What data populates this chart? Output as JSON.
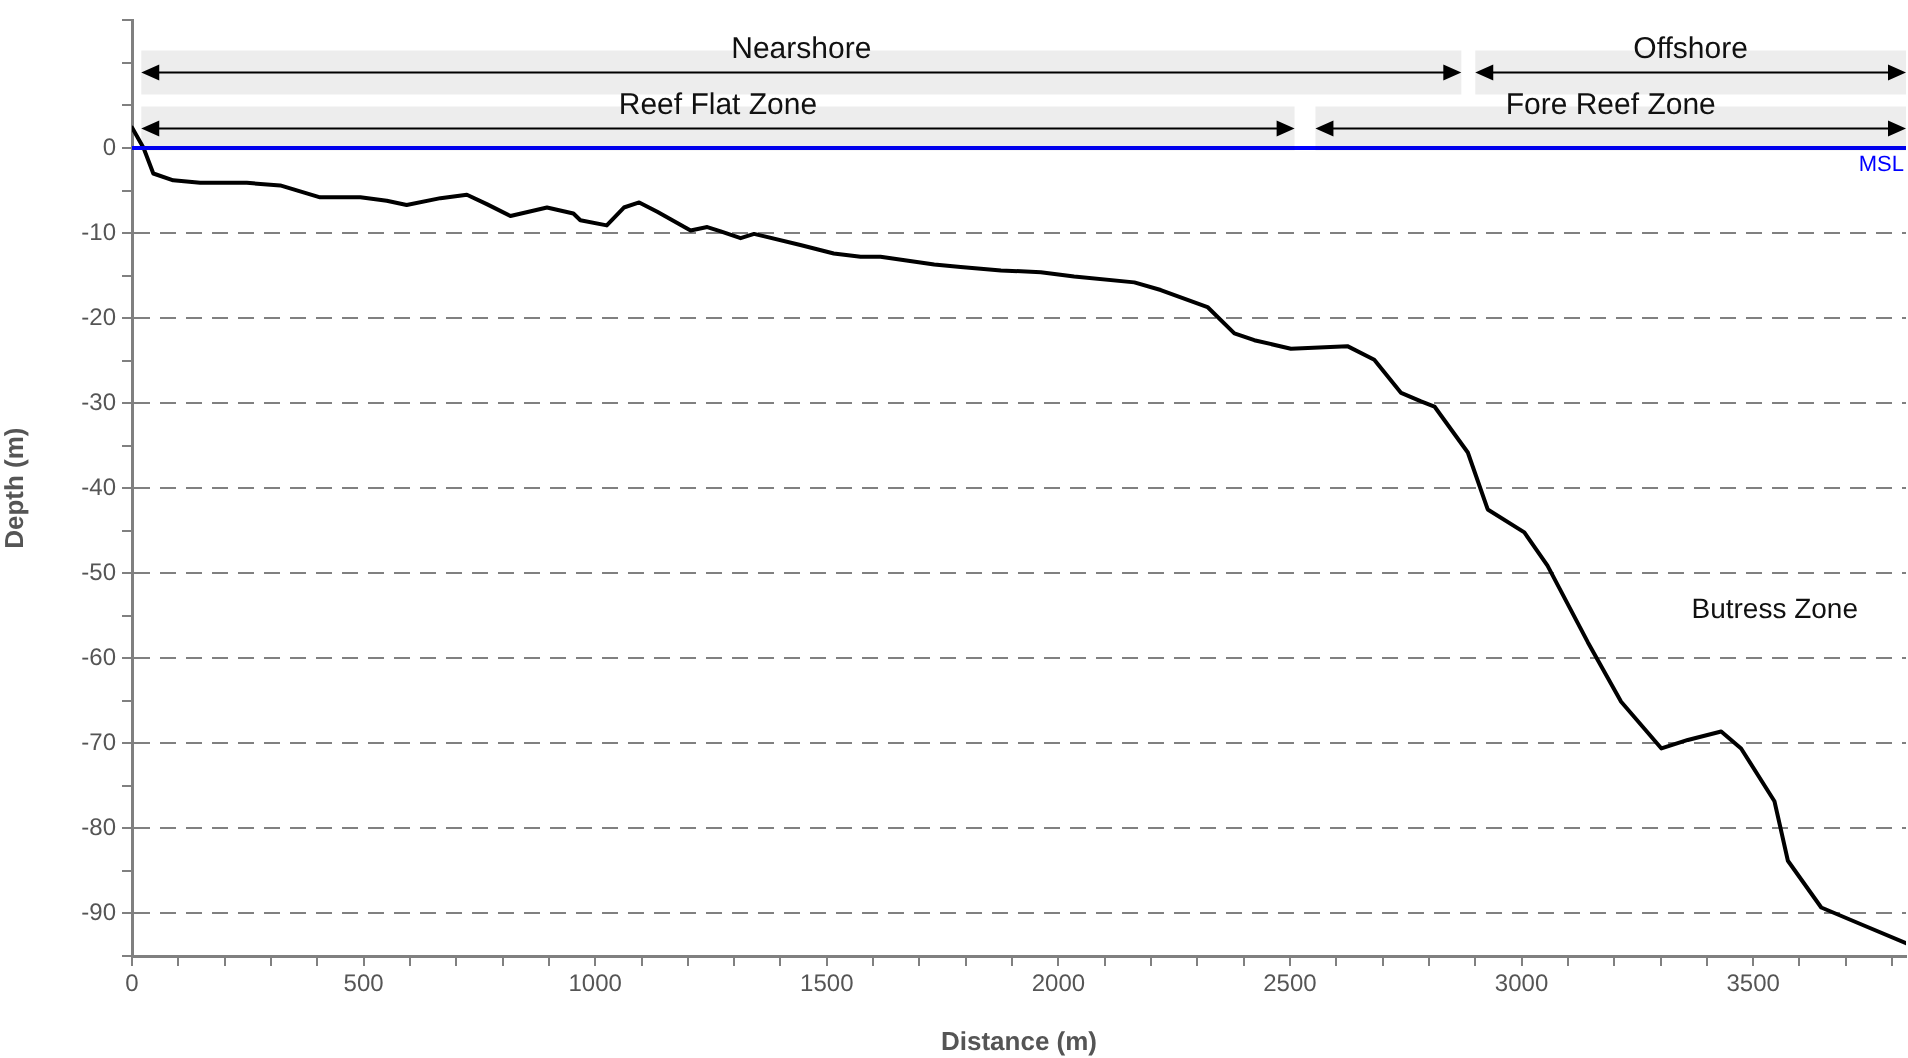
{
  "chart_data": {
    "type": "line",
    "xlabel": "Distance (m)",
    "ylabel": "Depth (m)",
    "xlim": [
      0,
      3830
    ],
    "ylim": [
      -95,
      15
    ],
    "xticks": [
      0,
      {
        "value": 100,
        "label": null
      },
      {
        "value": 200,
        "label": null
      },
      {
        "value": 300,
        "label": null
      },
      {
        "value": 400,
        "label": null
      },
      500,
      {
        "value": 600,
        "label": null
      },
      {
        "value": 700,
        "label": null
      },
      {
        "value": 800,
        "label": null
      },
      {
        "value": 900,
        "label": null
      },
      1000,
      {
        "value": 1100,
        "label": null
      },
      {
        "value": 1200,
        "label": null
      },
      {
        "value": 1300,
        "label": null
      },
      {
        "value": 1400,
        "label": null
      },
      1500,
      {
        "value": 1600,
        "label": null
      },
      {
        "value": 1700,
        "label": null
      },
      {
        "value": 1800,
        "label": null
      },
      {
        "value": 1900,
        "label": null
      },
      2000,
      {
        "value": 2100,
        "label": null
      },
      {
        "value": 2200,
        "label": null
      },
      {
        "value": 2300,
        "label": null
      },
      {
        "value": 2400,
        "label": null
      },
      2500,
      {
        "value": 2600,
        "label": null
      },
      {
        "value": 2700,
        "label": null
      },
      {
        "value": 2800,
        "label": null
      },
      {
        "value": 2900,
        "label": null
      },
      3000,
      {
        "value": 3100,
        "label": null
      },
      {
        "value": 3200,
        "label": null
      },
      {
        "value": 3300,
        "label": null
      },
      {
        "value": 3400,
        "label": null
      },
      3500,
      {
        "value": 3600,
        "label": null
      },
      {
        "value": 3700,
        "label": null
      },
      {
        "value": 3800,
        "label": null
      }
    ],
    "yticks": [
      {
        "value": -95,
        "label": null
      },
      -90,
      {
        "value": -85,
        "label": null
      },
      -80,
      {
        "value": -75,
        "label": null
      },
      -70,
      {
        "value": -65,
        "label": null
      },
      -60,
      {
        "value": -55,
        "label": null
      },
      -50,
      {
        "value": -45,
        "label": null
      },
      -40,
      {
        "value": -35,
        "label": null
      },
      -30,
      {
        "value": -25,
        "label": null
      },
      -20,
      {
        "value": -15,
        "label": null
      },
      -10,
      {
        "value": -5,
        "label": null
      },
      0,
      {
        "value": 5,
        "label": null
      },
      {
        "value": 10,
        "label": null
      },
      {
        "value": 15,
        "label": null
      }
    ],
    "grid": "y",
    "marker": "none",
    "line_style": "solid",
    "series": [
      {
        "color": "#000000",
        "x": [
          0,
          25,
          46,
          89,
          147,
          248,
          320,
          406,
          493,
          550,
          593,
          666,
          723,
          766,
          817,
          896,
          953,
          968,
          1025,
          1062,
          1095,
          1134,
          1206,
          1242,
          1271,
          1314,
          1343,
          1443,
          1515,
          1573,
          1616,
          1732,
          1789,
          1876,
          1962,
          2034,
          2164,
          2221,
          2322,
          2380,
          2423,
          2502,
          2624,
          2682,
          2740,
          2783,
          2812,
          2884,
          2927,
          3006,
          3056,
          3143,
          3215,
          3302,
          3359,
          3431,
          3474,
          3546,
          3575,
          3647,
          3734,
          3830
        ],
        "values": [
          2.4,
          0,
          -3.0,
          -3.8,
          -4.1,
          -4.1,
          -4.4,
          -5.8,
          -5.8,
          -6.2,
          -6.7,
          -5.9,
          -5.5,
          -6.6,
          -8.0,
          -7.0,
          -7.7,
          -8.5,
          -9.1,
          -7.0,
          -6.4,
          -7.5,
          -9.7,
          -9.3,
          -9.8,
          -10.6,
          -10.1,
          -11.4,
          -12.4,
          -12.8,
          -12.8,
          -13.7,
          -14.0,
          -14.4,
          -14.6,
          -15.1,
          -15.8,
          -16.7,
          -18.7,
          -21.8,
          -22.6,
          -23.6,
          -23.3,
          -24.9,
          -28.8,
          -29.8,
          -30.4,
          -35.8,
          -42.5,
          -45.2,
          -49.1,
          -58.1,
          -65.1,
          -70.6,
          -69.6,
          -68.6,
          -70.6,
          -76.8,
          -83.8,
          -89.3,
          -91.3,
          -93.5
        ]
      }
    ],
    "ref_lines": [
      {
        "axis": "y",
        "value": 0,
        "label": "MSL",
        "color": "#0000ff"
      }
    ],
    "bands": [
      {
        "axis": "x",
        "from": 20,
        "to": 2870,
        "label": "Nearshore",
        "color": "#000000"
      },
      {
        "axis": "x",
        "from": 2900,
        "to": 3830,
        "label": "Offshore",
        "color": "#000000"
      },
      {
        "axis": "x",
        "from": 20,
        "to": 2510,
        "label": "Reef Flat Zone",
        "color": "#000000"
      },
      {
        "axis": "x",
        "from": 2555,
        "to": 3830,
        "label": "Fore Reef Zone",
        "color": "#000000"
      }
    ],
    "annotations": [
      "Butress Zone"
    ]
  }
}
